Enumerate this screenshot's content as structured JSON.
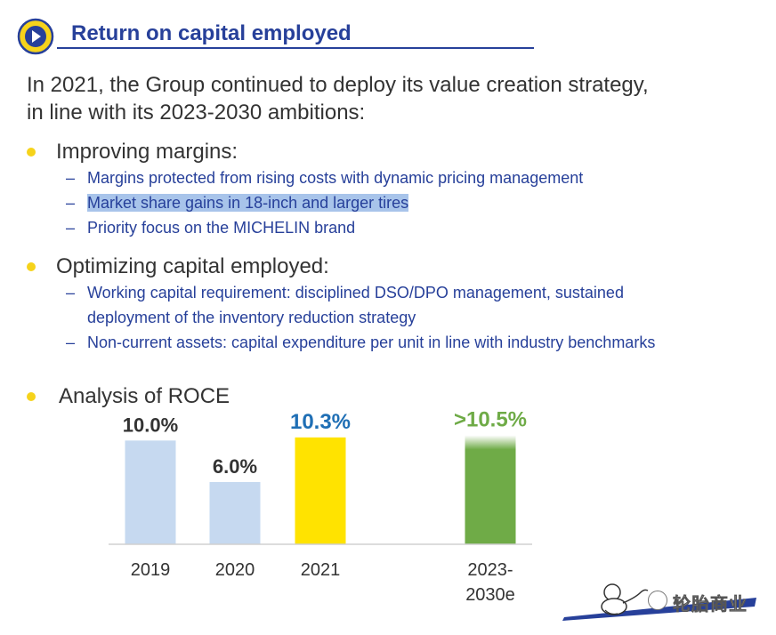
{
  "header": {
    "title": "Return on capital employed"
  },
  "intro": {
    "line1": "In 2021, the Group continued to deploy its value creation strategy,",
    "line2": "in line with its 2023-2030 ambitions:"
  },
  "sections": [
    {
      "heading": "Improving margins:",
      "items": [
        "Margins protected from rising costs with dynamic pricing management",
        "Market share gains in 18-inch and larger tires",
        "Priority focus on the MICHELIN brand"
      ]
    },
    {
      "heading": "Optimizing capital employed:",
      "items": [
        "Working capital requirement: disciplined DSO/DPO management, sustained",
        "deployment of the inventory reduction strategy",
        "Non-current assets: capital expenditure per unit in line with industry benchmarks"
      ]
    },
    {
      "heading": "Analysis of ROCE"
    }
  ],
  "dash": "–",
  "chart_data": {
    "type": "bar",
    "categories": [
      "2019",
      "2020",
      "2021",
      "2023-2030e"
    ],
    "category_lines": [
      [
        "2019"
      ],
      [
        "2020"
      ],
      [
        "2021"
      ],
      [
        "2023-",
        "2030e"
      ]
    ],
    "values": [
      10.0,
      6.0,
      10.3,
      10.5
    ],
    "labels": [
      "10.0%",
      "6.0%",
      "10.3%",
      ">10.5%"
    ],
    "colors": [
      "#c6d9f0",
      "#c6d9f0",
      "#ffe300",
      "#6fab47"
    ],
    "label_colors": [
      "#333333",
      "#333333",
      "#1f6fb5",
      "#6fab47"
    ],
    "ylim": [
      0,
      12
    ]
  },
  "watermark": {
    "text": "轮胎商业"
  },
  "colors": {
    "brand_blue": "#27409a",
    "bullet": "#f6d31b"
  }
}
